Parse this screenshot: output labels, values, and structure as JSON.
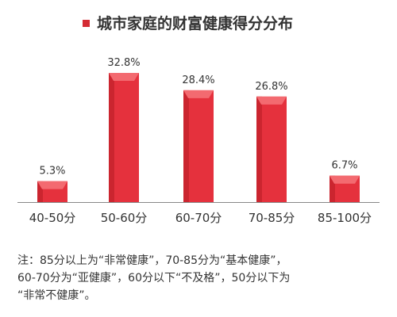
{
  "chart_data": {
    "type": "bar",
    "title": "城市家庭的财富健康得分分布",
    "categories": [
      "40-50分",
      "50-60分",
      "60-70分",
      "70-85分",
      "85-100分"
    ],
    "values": [
      5.3,
      32.8,
      28.4,
      26.8,
      6.7
    ],
    "value_labels": [
      "5.3%",
      "32.8%",
      "28.4%",
      "26.8%",
      "6.7%"
    ],
    "xlabel": "",
    "ylabel": "",
    "ylim": [
      0,
      35
    ],
    "grid": false,
    "legend": "none",
    "colors": {
      "bar_main": "#e5313d",
      "bar_light": "#f36a70",
      "bar_dark": "#b71c24",
      "title_bullet": "#d42b34",
      "text": "#333333",
      "axis": "#888888"
    }
  },
  "note": {
    "lines": [
      "注：85分以上为“非常健康”，70-85分为“基本健康”，",
      "60-70分为“亚健康”，60分以下“不及格”，50分以下为",
      "“非常不健康”。"
    ]
  }
}
